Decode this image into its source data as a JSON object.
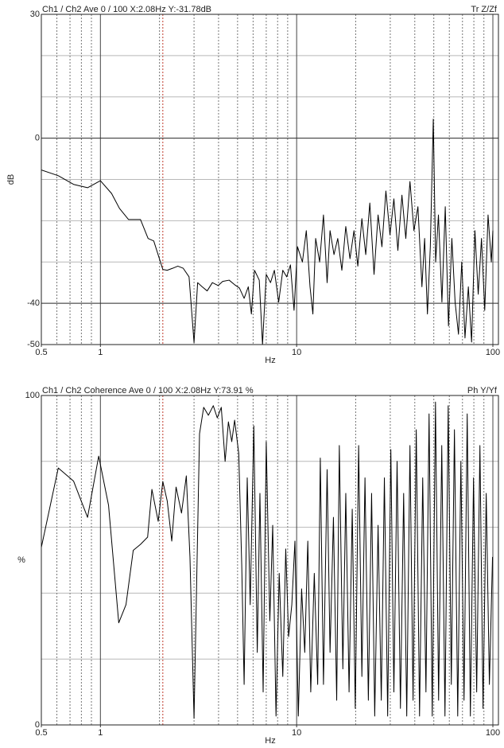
{
  "chart_data": [
    {
      "type": "line",
      "title": "Ch1 / Ch2  Ave 0 / 100  X:2.08Hz  Y:-31.78dB",
      "corner_label": "Tr Z/Zf",
      "x_label": "Hz",
      "y_label": "dB",
      "xscale": "log",
      "color": "#000000",
      "cursor_x": 2.08,
      "xlim": [
        0.5,
        100
      ],
      "xticks": [
        0.5,
        1,
        10,
        100
      ],
      "xgrid_major": [
        1,
        10,
        100
      ],
      "xgrid_minor": [
        0.6,
        0.7,
        0.8,
        0.9,
        2,
        3,
        4,
        5,
        6,
        7,
        8,
        9,
        20,
        30,
        40,
        50,
        60,
        70,
        80,
        90
      ],
      "ylim": [
        -50,
        30
      ],
      "yticks": [
        30,
        0,
        -40,
        -50
      ],
      "ygrid": [
        20,
        10,
        0,
        -10,
        -20,
        -30,
        -40
      ],
      "x": [
        0.5,
        0.61,
        0.73,
        0.86,
        1,
        1.14,
        1.25,
        1.39,
        1.6,
        1.75,
        1.87,
        2.08,
        2.19,
        2.34,
        2.48,
        2.64,
        2.83,
        3.0,
        3.13,
        3.3,
        3.5,
        3.72,
        3.98,
        4.2,
        4.53,
        4.83,
        5.11,
        5.4,
        5.67,
        5.88,
        6.1,
        6.45,
        6.7,
        7.0,
        7.36,
        7.7,
        8.1,
        8.5,
        8.9,
        9.3,
        9.7,
        10.1,
        10.7,
        11.2,
        11.7,
        12.1,
        12.5,
        13.1,
        13.7,
        14.3,
        14.8,
        15.5,
        16.2,
        17.0,
        17.8,
        18.7,
        19.6,
        20.5,
        21.5,
        22.5,
        23.6,
        24.8,
        26.0,
        27.2,
        28.5,
        29.9,
        31.3,
        32.8,
        34.4,
        36.0,
        37.8,
        39.6,
        41.5,
        43.5,
        44.9,
        46.4,
        48.0,
        49.7,
        51.1,
        52.8,
        55.0,
        57.2,
        59.4,
        61.8,
        64.2,
        66.8,
        69.4,
        72.1,
        75.0,
        77.9,
        81.0,
        84.2,
        87.5,
        90.9,
        94.5,
        98.2,
        100
      ],
      "values": [
        -7.7,
        -9.1,
        -11.2,
        -12,
        -10.3,
        -13.4,
        -17,
        -19.7,
        -19.7,
        -24.3,
        -24.9,
        -31.8,
        -32,
        -31.5,
        -31,
        -31.5,
        -33.6,
        -49.5,
        -35,
        -36,
        -37,
        -35,
        -35.7,
        -34.7,
        -34.4,
        -35.5,
        -36.3,
        -38.8,
        -36,
        -42.6,
        -32,
        -34.4,
        -50,
        -33,
        -35,
        -32,
        -39.7,
        -32,
        -33.6,
        -30.7,
        -41.7,
        -26.3,
        -30,
        -22.4,
        -36,
        -42.6,
        -24.3,
        -30,
        -18.6,
        -35,
        -22.4,
        -28.2,
        -24.3,
        -32,
        -21.4,
        -29.2,
        -22.4,
        -31,
        -19.5,
        -28.2,
        -15.7,
        -33,
        -18.6,
        -26.3,
        -12.8,
        -23.4,
        -14.7,
        -27.2,
        -13.8,
        -24.3,
        -10.5,
        -22.4,
        -16.6,
        -36,
        -24.3,
        -42.6,
        -26.3,
        4.6,
        -30,
        -18.6,
        -39.7,
        -16.6,
        -45.5,
        -24.3,
        -39.7,
        -47.5,
        -30,
        -48.4,
        -36,
        -49.4,
        -22.4,
        -37.8,
        -24.3,
        -41.7,
        -18.6,
        -30,
        -22.4
      ]
    },
    {
      "type": "line",
      "title": "Ch1 / Ch2  Coherence Ave 0 / 100  X:2.08Hz  Y:73.91 %",
      "corner_label": "Ph Y/Yf",
      "x_label": "Hz",
      "y_label": "%",
      "xscale": "log",
      "color": "#000000",
      "cursor_x": 2.08,
      "xlim": [
        0.5,
        100
      ],
      "xticks": [
        0.5,
        1,
        10,
        100
      ],
      "xgrid_major": [
        1,
        10,
        100
      ],
      "xgrid_minor": [
        0.6,
        0.7,
        0.8,
        0.9,
        2,
        3,
        4,
        5,
        6,
        7,
        8,
        9,
        20,
        30,
        40,
        50,
        60,
        70,
        80,
        90
      ],
      "ylim": [
        0,
        100
      ],
      "yticks": [
        100,
        0
      ],
      "ygrid": [
        80,
        60,
        40,
        20
      ],
      "x": [
        0.5,
        0.61,
        0.73,
        0.86,
        0.98,
        1.1,
        1.24,
        1.35,
        1.47,
        1.6,
        1.74,
        1.83,
        1.97,
        2.08,
        2.19,
        2.31,
        2.43,
        2.59,
        2.74,
        2.86,
        3.0,
        3.2,
        3.36,
        3.55,
        3.76,
        3.94,
        4.13,
        4.32,
        4.49,
        4.67,
        4.83,
        5.07,
        5.25,
        5.4,
        5.6,
        5.8,
        6.05,
        6.3,
        6.5,
        6.75,
        7.0,
        7.3,
        7.55,
        7.85,
        8.15,
        8.5,
        8.8,
        9.1,
        9.45,
        9.8,
        10.2,
        10.6,
        11,
        11.4,
        11.8,
        12.3,
        12.8,
        13.2,
        13.7,
        14.3,
        14.8,
        15.4,
        16,
        16.5,
        17.2,
        17.8,
        18.5,
        19.2,
        19.9,
        20.7,
        21.5,
        22.3,
        23.2,
        24.1,
        25,
        26,
        27,
        28,
        29.1,
        30.2,
        31.3,
        32.5,
        33.8,
        35.1,
        36.4,
        37.8,
        39.2,
        40.7,
        42.3,
        43.9,
        45.6,
        47.3,
        49.1,
        51,
        52.9,
        54.9,
        57,
        59.2,
        61.4,
        63.7,
        66.2,
        68.7,
        71.3,
        74,
        76.8,
        79.7,
        82.7,
        85.9,
        89.1,
        92.5,
        96,
        99.6
      ],
      "values": [
        53.9,
        78,
        74,
        63,
        81.6,
        66.7,
        31,
        36.5,
        53,
        54.8,
        57,
        71.5,
        61.8,
        73.9,
        68,
        55.8,
        72.2,
        64.3,
        75.6,
        51,
        2,
        88.4,
        96.4,
        94,
        96.9,
        93.2,
        96.4,
        80,
        92,
        86,
        92.5,
        82.4,
        48.6,
        12.3,
        75,
        36.5,
        90.8,
        22,
        70.3,
        10,
        86,
        31.6,
        60.6,
        2.7,
        46,
        14.7,
        53.4,
        26.8,
        36.5,
        55.8,
        2.7,
        41.3,
        22,
        55.8,
        10,
        46,
        12.3,
        81,
        12.3,
        77.5,
        22,
        63,
        7.5,
        84.8,
        17,
        70.3,
        10,
        65.5,
        5,
        84.8,
        14.7,
        75,
        7.5,
        70.3,
        2.7,
        60.6,
        7.5,
        75,
        2.7,
        83.6,
        10,
        80,
        5,
        70.3,
        2.7,
        84.8,
        7.5,
        89.6,
        2.7,
        75,
        10,
        94.4,
        2.7,
        98,
        7.5,
        84.8,
        2.7,
        96.9,
        12.3,
        89.6,
        2.7,
        80,
        7.5,
        94.4,
        2.7,
        75,
        10,
        84.8,
        5,
        70.3,
        12.3,
        51
      ]
    }
  ]
}
